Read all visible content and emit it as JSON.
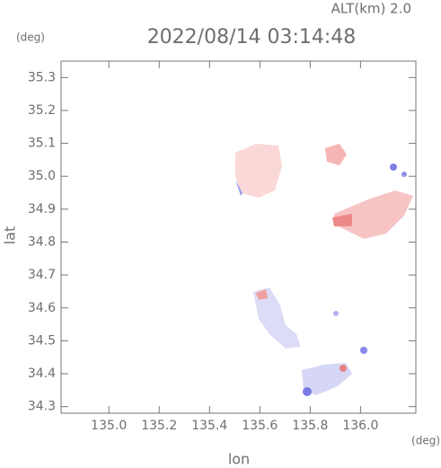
{
  "chart_data": {
    "type": "map",
    "title": "2022/08/14 03:14:48",
    "subtitle": "ALT(km) 2.0",
    "y_unit": "(deg)",
    "x_unit": "(deg)",
    "x_label": "lon",
    "y_label": "lat",
    "xlim": [
      134.81,
      136.22
    ],
    "ylim": [
      34.28,
      35.35
    ],
    "xticks": [
      {
        "value": 135.0,
        "label": "135.0"
      },
      135.2,
      135.4,
      135.6,
      135.8,
      {
        "value": 136.0,
        "label": "136.0"
      }
    ],
    "yticks": [
      34.3,
      34.4,
      34.5,
      34.6,
      34.7,
      34.8,
      34.9,
      {
        "value": 35.0,
        "label": "35.0"
      },
      35.1,
      35.2,
      35.3
    ]
  }
}
